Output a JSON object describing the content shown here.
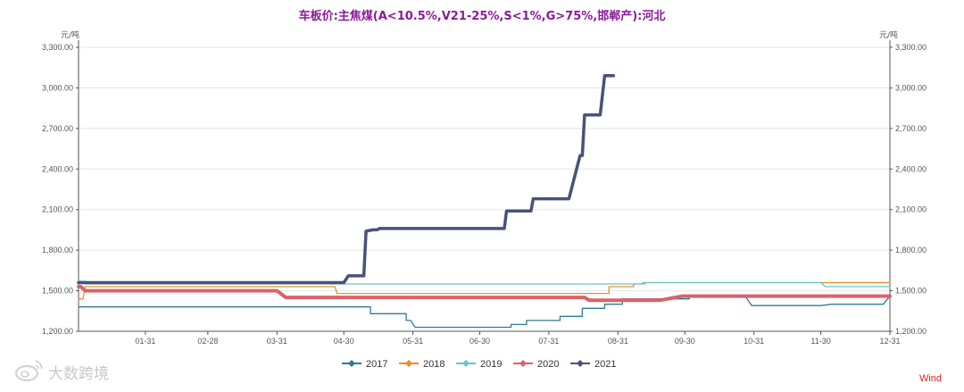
{
  "chart_data": {
    "type": "line",
    "title": "车板价:主焦煤(A<10.5%,V21-25%,S<1%,G>75%,邯郸产):河北",
    "ylabel_left": "元/吨",
    "ylabel_right": "元/吨",
    "xlabel": "",
    "ylim": [
      1200,
      3300
    ],
    "xlim": [
      1,
      365
    ],
    "yticks": [
      1200,
      1500,
      1800,
      2100,
      2400,
      2700,
      3000,
      3300
    ],
    "ytick_labels": [
      "1,200.00",
      "1,500.00",
      "1,800.00",
      "2,100.00",
      "2,400.00",
      "2,700.00",
      "3,000.00",
      "3,300.00"
    ],
    "xticks": [
      31,
      59,
      90,
      120,
      151,
      181,
      212,
      243,
      273,
      304,
      334,
      365
    ],
    "xtick_labels": [
      "01-31",
      "02-28",
      "03-31",
      "04-30",
      "05-31",
      "06-30",
      "07-31",
      "08-31",
      "09-30",
      "10-31",
      "11-30",
      "12-31"
    ],
    "grid": true,
    "legend_position": "bottom",
    "series": [
      {
        "name": "2017",
        "color": "#2e7b94",
        "stroke_width": 1.3,
        "points": [
          [
            1,
            1380
          ],
          [
            132,
            1380
          ],
          [
            132,
            1330
          ],
          [
            148,
            1330
          ],
          [
            148,
            1280
          ],
          [
            150,
            1280
          ],
          [
            152,
            1230
          ],
          [
            195,
            1230
          ],
          [
            195,
            1250
          ],
          [
            202,
            1250
          ],
          [
            202,
            1280
          ],
          [
            217,
            1280
          ],
          [
            217,
            1310
          ],
          [
            227,
            1310
          ],
          [
            227,
            1370
          ],
          [
            237,
            1370
          ],
          [
            237,
            1400
          ],
          [
            245,
            1400
          ],
          [
            245,
            1440
          ],
          [
            275,
            1440
          ],
          [
            275,
            1460
          ],
          [
            300,
            1460
          ],
          [
            303,
            1390
          ],
          [
            334,
            1390
          ],
          [
            339,
            1400
          ],
          [
            362,
            1400
          ],
          [
            365,
            1460
          ]
        ]
      },
      {
        "name": "2018",
        "color": "#e8902a",
        "stroke_width": 1.3,
        "points": [
          [
            1,
            1440
          ],
          [
            3,
            1440
          ],
          [
            4,
            1530
          ],
          [
            116,
            1530
          ],
          [
            117,
            1480
          ],
          [
            239,
            1480
          ],
          [
            239,
            1530
          ],
          [
            250,
            1530
          ],
          [
            250,
            1550
          ],
          [
            255,
            1550
          ],
          [
            255,
            1560
          ],
          [
            334,
            1560
          ],
          [
            334,
            1560
          ],
          [
            365,
            1560
          ]
        ]
      },
      {
        "name": "2019",
        "color": "#6cc4c4",
        "stroke_width": 1.3,
        "points": [
          [
            1,
            1570
          ],
          [
            4,
            1570
          ],
          [
            4,
            1550
          ],
          [
            254,
            1550
          ],
          [
            254,
            1560
          ],
          [
            334,
            1560
          ],
          [
            336,
            1530
          ],
          [
            365,
            1530
          ]
        ]
      },
      {
        "name": "2020",
        "color": "#d8646a",
        "stroke_width": 4,
        "points": [
          [
            1,
            1530
          ],
          [
            2,
            1530
          ],
          [
            4,
            1500
          ],
          [
            90,
            1500
          ],
          [
            94,
            1450
          ],
          [
            228,
            1450
          ],
          [
            230,
            1430
          ],
          [
            262,
            1430
          ],
          [
            272,
            1460
          ],
          [
            365,
            1460
          ]
        ]
      },
      {
        "name": "2021",
        "color": "#48527a",
        "stroke_width": 3.5,
        "points": [
          [
            1,
            1560
          ],
          [
            120,
            1560
          ],
          [
            122,
            1610
          ],
          [
            129,
            1610
          ],
          [
            130,
            1940
          ],
          [
            133,
            1950
          ],
          [
            135,
            1950
          ],
          [
            136,
            1960
          ],
          [
            192,
            1960
          ],
          [
            193,
            2090
          ],
          [
            204,
            2090
          ],
          [
            205,
            2180
          ],
          [
            221,
            2180
          ],
          [
            226,
            2500
          ],
          [
            227,
            2500
          ],
          [
            228,
            2800
          ],
          [
            235,
            2800
          ],
          [
            237,
            3090
          ],
          [
            241,
            3090
          ]
        ]
      }
    ]
  },
  "branding": {
    "source_label": "Wind",
    "source_color": "#e02020",
    "watermark_text": "大数跨境",
    "watermark_icon": "weibo-icon"
  },
  "colors": {
    "title": "#8b1a9c",
    "grid": "#e4e4e4",
    "axis": "#555555"
  }
}
